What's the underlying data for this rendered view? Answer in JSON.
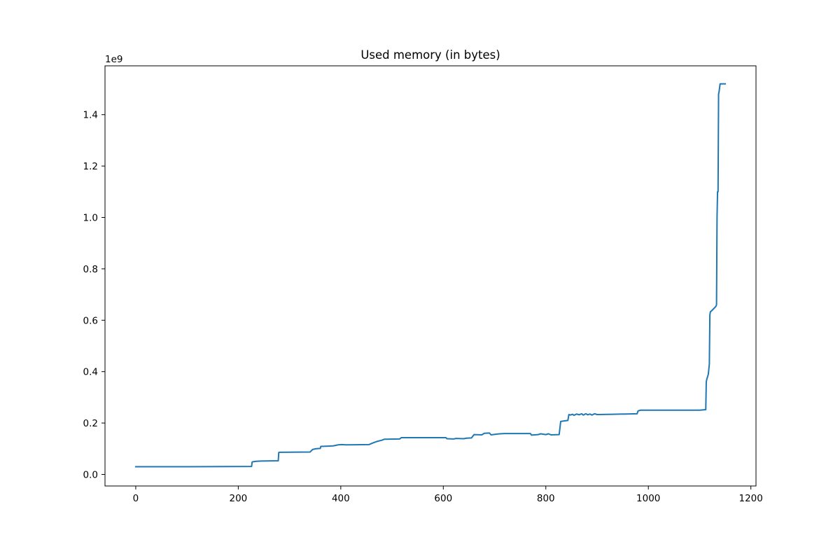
{
  "chart_data": {
    "type": "line",
    "title": "Used memory (in bytes)",
    "xlabel": "",
    "ylabel": "",
    "y_offset_label": "1e9",
    "y_multiplier": 1000000000,
    "xlim": [
      -60,
      1210
    ],
    "ylim": [
      -0.045,
      1.59
    ],
    "x_ticks": [
      {
        "value": 0,
        "label": "0"
      },
      {
        "value": 200,
        "label": "200"
      },
      {
        "value": 400,
        "label": "400"
      },
      {
        "value": 600,
        "label": "600"
      },
      {
        "value": 800,
        "label": "800"
      },
      {
        "value": 1000,
        "label": "1000"
      },
      {
        "value": 1200,
        "label": "1200"
      }
    ],
    "y_ticks": [
      {
        "value": 0.0,
        "label": "0.0"
      },
      {
        "value": 0.2,
        "label": "0.2"
      },
      {
        "value": 0.4,
        "label": "0.4"
      },
      {
        "value": 0.6,
        "label": "0.6"
      },
      {
        "value": 0.8,
        "label": "0.8"
      },
      {
        "value": 1.0,
        "label": "1.0"
      },
      {
        "value": 1.2,
        "label": "1.2"
      },
      {
        "value": 1.4,
        "label": "1.4"
      }
    ],
    "grid": false,
    "legend": "none",
    "series": [
      {
        "color": "#1f77b4",
        "x": [
          0,
          100,
          226,
          227,
          228,
          235,
          245,
          278,
          279,
          280,
          340,
          345,
          352,
          360,
          361,
          375,
          385,
          395,
          402,
          410,
          455,
          462,
          470,
          480,
          485,
          515,
          518,
          605,
          607,
          620,
          625,
          640,
          645,
          655,
          660,
          675,
          680,
          690,
          693,
          705,
          710,
          720,
          770,
          772,
          785,
          790,
          800,
          805,
          810,
          826,
          829,
          832,
          843,
          845,
          848,
          852,
          855,
          860,
          865,
          870,
          873,
          878,
          882,
          886,
          890,
          895,
          900,
          930,
          978,
          980,
          985,
          1020,
          1100,
          1112,
          1113,
          1114,
          1117,
          1119,
          1120,
          1121,
          1122,
          1125,
          1130,
          1132,
          1133,
          1134,
          1135,
          1136,
          1137,
          1138,
          1140,
          1142,
          1150
        ],
        "y": [
          0.03,
          0.03,
          0.031,
          0.048,
          0.049,
          0.051,
          0.052,
          0.053,
          0.085,
          0.086,
          0.087,
          0.097,
          0.1,
          0.101,
          0.109,
          0.11,
          0.111,
          0.115,
          0.116,
          0.115,
          0.116,
          0.122,
          0.128,
          0.133,
          0.137,
          0.138,
          0.143,
          0.143,
          0.139,
          0.138,
          0.14,
          0.139,
          0.141,
          0.142,
          0.155,
          0.154,
          0.16,
          0.161,
          0.154,
          0.157,
          0.158,
          0.159,
          0.159,
          0.153,
          0.155,
          0.158,
          0.155,
          0.158,
          0.154,
          0.155,
          0.206,
          0.207,
          0.21,
          0.233,
          0.231,
          0.234,
          0.23,
          0.235,
          0.232,
          0.236,
          0.231,
          0.236,
          0.232,
          0.235,
          0.231,
          0.236,
          0.233,
          0.234,
          0.236,
          0.247,
          0.25,
          0.25,
          0.25,
          0.252,
          0.36,
          0.37,
          0.39,
          0.43,
          0.62,
          0.633,
          0.634,
          0.64,
          0.65,
          0.655,
          0.66,
          1.0,
          1.1,
          1.1,
          1.48,
          1.49,
          1.52,
          1.52,
          1.52
        ]
      }
    ]
  }
}
